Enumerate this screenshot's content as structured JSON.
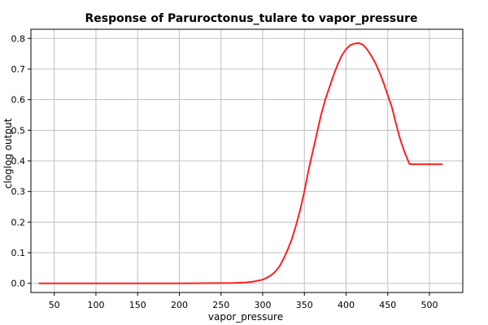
{
  "chart_data": {
    "type": "line",
    "title": "Response of Paruroctonus_tulare to vapor_pressure",
    "xlabel": "vapor_pressure",
    "ylabel": "cloglog output",
    "xlim": [
      22,
      540
    ],
    "ylim": [
      -0.03,
      0.83
    ],
    "xticks": [
      50,
      100,
      150,
      200,
      250,
      300,
      350,
      400,
      450,
      500
    ],
    "yticks": [
      0.0,
      0.1,
      0.2,
      0.3,
      0.4,
      0.5,
      0.6,
      0.7,
      0.8
    ],
    "ytick_labels": [
      "0.0",
      "0.1",
      "0.2",
      "0.3",
      "0.4",
      "0.5",
      "0.6",
      "0.7",
      "0.8"
    ],
    "grid": true,
    "series": [
      {
        "color": "#ff2020",
        "x": [
          32,
          100,
          200,
          265,
          280,
          290,
          300,
          305,
          310,
          315,
          320,
          325,
          330,
          335,
          340,
          345,
          350,
          355,
          360,
          365,
          370,
          375,
          380,
          385,
          390,
          395,
          400,
          405,
          410,
          415,
          420,
          425,
          430,
          435,
          440,
          445,
          450,
          455,
          460,
          465,
          470,
          476,
          480,
          490,
          500,
          515
        ],
        "y": [
          0.0,
          0.0,
          0.0,
          0.001,
          0.003,
          0.006,
          0.012,
          0.018,
          0.026,
          0.038,
          0.055,
          0.08,
          0.11,
          0.145,
          0.19,
          0.24,
          0.3,
          0.37,
          0.43,
          0.49,
          0.55,
          0.6,
          0.64,
          0.68,
          0.715,
          0.745,
          0.765,
          0.778,
          0.783,
          0.785,
          0.78,
          0.765,
          0.745,
          0.72,
          0.69,
          0.655,
          0.615,
          0.575,
          0.52,
          0.47,
          0.43,
          0.39,
          0.389,
          0.389,
          0.389,
          0.389
        ]
      }
    ]
  }
}
